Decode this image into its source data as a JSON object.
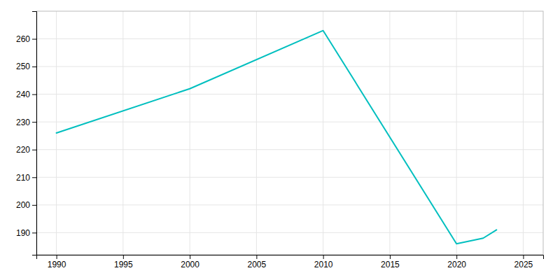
{
  "chart_data": {
    "type": "line",
    "x": [
      1990,
      2000,
      2010,
      2020,
      2022,
      2023
    ],
    "values": [
      226,
      242,
      263,
      186,
      188,
      191
    ],
    "color": "#00BFBF",
    "xlim": [
      1988.5,
      2026.5
    ],
    "ylim": [
      182,
      270
    ],
    "xticks": [
      1990,
      1995,
      2000,
      2005,
      2010,
      2015,
      2020,
      2025
    ],
    "yticks": [
      190,
      200,
      210,
      220,
      230,
      240,
      250,
      260
    ],
    "grid": true
  }
}
